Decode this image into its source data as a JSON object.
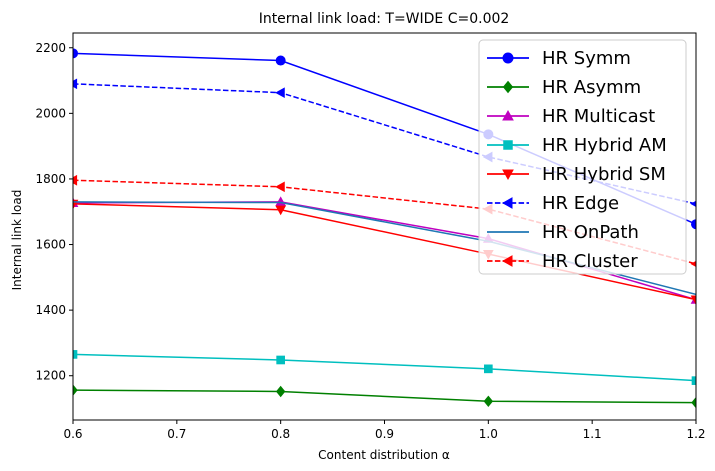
{
  "chart_data": {
    "type": "line",
    "title": "Internal link load: T=WIDE C=0.002",
    "xlabel": "Content distribution α",
    "ylabel": "Internal link load",
    "x": [
      0.6,
      0.8,
      1.0,
      1.2
    ],
    "xlim": [
      0.6,
      1.2
    ],
    "ylim": [
      1065,
      2245
    ],
    "xticks": [
      "0.6",
      "0.7",
      "0.8",
      "0.9",
      "1.0",
      "1.1",
      "1.2"
    ],
    "yticks": [
      "1200",
      "1400",
      "1600",
      "1800",
      "2000",
      "2200"
    ],
    "grid": false,
    "legend_position": "top-right",
    "series": [
      {
        "name": "HR Symm",
        "values": [
          2183,
          2161,
          1936,
          1662
        ],
        "color": "#0000ff",
        "dash": "solid",
        "marker": "circle"
      },
      {
        "name": "HR Asymm",
        "values": [
          1156,
          1152,
          1122,
          1118
        ],
        "color": "#008000",
        "dash": "solid",
        "marker": "diamond"
      },
      {
        "name": "HR Multicast",
        "values": [
          1727,
          1730,
          1618,
          1432
        ],
        "color": "#bf00bf",
        "dash": "solid",
        "marker": "triangle-up"
      },
      {
        "name": "HR Hybrid AM",
        "values": [
          1265,
          1248,
          1221,
          1185
        ],
        "color": "#00bfbf",
        "dash": "solid",
        "marker": "square"
      },
      {
        "name": "HR Hybrid SM",
        "values": [
          1724,
          1706,
          1571,
          1432
        ],
        "color": "#ff0000",
        "dash": "solid",
        "marker": "triangle-down"
      },
      {
        "name": "HR Edge",
        "values": [
          2090,
          2063,
          1867,
          1724
        ],
        "color": "#0000ff",
        "dash": "dashed",
        "marker": "triangle-left"
      },
      {
        "name": "HR OnPath",
        "values": [
          1730,
          1728,
          1610,
          1448
        ],
        "color": "#1f77b4",
        "dash": "solid",
        "marker": "none"
      },
      {
        "name": "HR Cluster",
        "values": [
          1796,
          1776,
          1708,
          1541
        ],
        "color": "#ff0000",
        "dash": "dashed",
        "marker": "triangle-left"
      }
    ]
  }
}
